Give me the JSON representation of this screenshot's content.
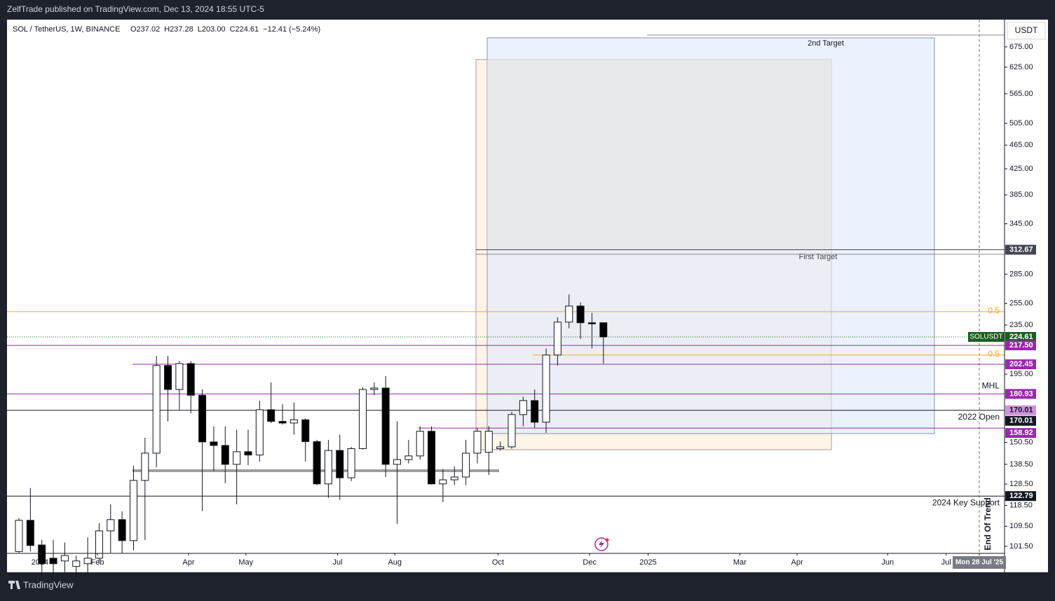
{
  "header": {
    "publisher": "ZelfTrade published on TradingView.com, Dec 13, 2024 18:55 UTC-5",
    "footer": "TradingView"
  },
  "chart_data": {
    "type": "candlestick",
    "symbol": "SOL / TetherUS, 1W, BINANCE",
    "legend": [
      "O237.02",
      "H237.28",
      "L203.00",
      "C224.61",
      "−12.41 (−5.24%)"
    ],
    "currency": "USDT",
    "log_scale": true,
    "open": [
      99.5,
      112,
      102,
      97,
      96,
      94,
      95,
      97,
      107.6,
      112.3,
      103.7,
      130.3,
      144.5,
      201.5,
      184,
      203,
      180,
      150.8,
      148.8,
      138.5,
      145.3,
      143.5,
      170.4,
      163,
      162,
      164,
      151,
      128.6,
      146,
      131.6,
      147,
      184,
      185,
      138.5,
      141,
      143,
      157,
      128.6,
      130.6,
      132,
      144.5,
      145,
      147,
      148,
      167.3,
      176.4,
      162.5,
      209.7,
      237.6,
      252.5,
      237,
      237.02
    ],
    "high": [
      113,
      126.6,
      104,
      104,
      103,
      98,
      105,
      110.8,
      119,
      115.9,
      137.8,
      153.2,
      209,
      209,
      205,
      205,
      184,
      160,
      160,
      158,
      158,
      176.4,
      189,
      174,
      175,
      165,
      152,
      152,
      155,
      148,
      185.5,
      189,
      193.6,
      163,
      152,
      160,
      160,
      136,
      137.5,
      152,
      159,
      160,
      151,
      169,
      179,
      184,
      215,
      242,
      264,
      256,
      246,
      237.28
    ],
    "low": [
      99,
      99.5,
      90,
      90,
      92,
      90,
      91,
      95,
      99,
      98.8,
      100,
      104,
      137,
      163,
      170,
      168,
      116,
      135,
      129,
      119,
      138,
      140,
      162,
      161,
      155,
      140,
      128,
      122,
      121,
      130,
      146.5,
      180,
      132,
      110.5,
      139,
      141,
      128.3,
      120,
      128,
      128,
      139,
      133,
      146,
      147,
      160,
      159,
      156,
      201.5,
      232,
      223,
      215,
      203
    ],
    "close": [
      112,
      101.8,
      95,
      95,
      98,
      96,
      97,
      107.6,
      112.3,
      103.7,
      130.3,
      144.5,
      201.5,
      184,
      203,
      180,
      150.8,
      148.8,
      138.5,
      145.3,
      143.5,
      170.4,
      163,
      162,
      164,
      151,
      128.6,
      146,
      131.6,
      147,
      184,
      185,
      138.5,
      141,
      143,
      157,
      128.6,
      130.6,
      132,
      144.5,
      157,
      157,
      148,
      167.3,
      176.4,
      162.5,
      209.7,
      237.6,
      252.5,
      237,
      236,
      224.61
    ],
    "xlim": [
      -1.04,
      86
    ],
    "xticks": [
      {
        "value": 1.83,
        "label": "2024"
      },
      {
        "value": 6.85,
        "label": "Feb"
      },
      {
        "value": 14.8,
        "label": "Apr"
      },
      {
        "value": 19.8,
        "label": "May"
      },
      {
        "value": 27.8,
        "label": "Jul"
      },
      {
        "value": 32.8,
        "label": "Aug"
      },
      {
        "value": 41.8,
        "label": "Oct"
      },
      {
        "value": 49.8,
        "label": "Dec"
      },
      {
        "value": 54.9,
        "label": "2025"
      },
      {
        "value": 62.9,
        "label": "Mar"
      },
      {
        "value": 67.9,
        "label": "Apr"
      },
      {
        "value": 75.8,
        "label": "Jun"
      },
      {
        "value": 80.9,
        "label": "Jul"
      },
      {
        "value": 83.8,
        "label": "Mon 28 Jul '25"
      }
    ],
    "ylim": [
      98.8,
      748.6
    ],
    "yticks": [
      {
        "value": 675,
        "label": "675.00"
      },
      {
        "value": 625,
        "label": "625.00"
      },
      {
        "value": 565,
        "label": "565.00"
      },
      {
        "value": 505,
        "label": "505.00"
      },
      {
        "value": 465,
        "label": "465.00"
      },
      {
        "value": 425,
        "label": "425.00"
      },
      {
        "value": 385,
        "label": "385.00"
      },
      {
        "value": 345,
        "label": "345.00"
      },
      {
        "value": 285,
        "label": "285.00"
      },
      {
        "value": 255,
        "label": "255.00"
      },
      {
        "value": 235,
        "label": "235.00"
      },
      {
        "value": 195,
        "label": "195.00"
      },
      {
        "value": 150.5,
        "label": "150.50"
      },
      {
        "value": 138.5,
        "label": "138.50"
      },
      {
        "value": 128.5,
        "label": "128.50"
      },
      {
        "value": 118.5,
        "label": "118.50"
      },
      {
        "value": 109.5,
        "label": "109.50"
      },
      {
        "value": 101.5,
        "label": "101.50"
      }
    ],
    "levels": [
      {
        "price": 312.67,
        "label": "312.67",
        "color": "#434651"
      },
      {
        "price": 247.2,
        "text": "0.5",
        "color": "#f5a623"
      },
      {
        "price": 224.61,
        "label": "224.61",
        "tag": "SOLUSDT",
        "color": "#1b5e20"
      },
      {
        "price": 217.5,
        "label": "217.50",
        "color": "#9c27b0"
      },
      {
        "price": 209.7,
        "text": "0.5",
        "color": "#f5a623"
      },
      {
        "price": 202.45,
        "label": "202.45",
        "color": "#9c27b0"
      },
      {
        "price": 180.93,
        "label": "180.93",
        "text": "MHL",
        "color": "#9c27b0"
      },
      {
        "price": 170.01,
        "label": "170.01",
        "color": "#ce93d8"
      },
      {
        "price": 170.01,
        "label": "170.01",
        "text": "2022 Open",
        "color": "#131722"
      },
      {
        "price": 158.92,
        "label": "158.92",
        "color": "#9c27b0"
      },
      {
        "price": 122.79,
        "label": "122.79",
        "text": "2024 Key Support",
        "color": "#131722"
      }
    ],
    "annotations": [
      "2nd Target",
      "First Target",
      "End Of Trend"
    ]
  }
}
